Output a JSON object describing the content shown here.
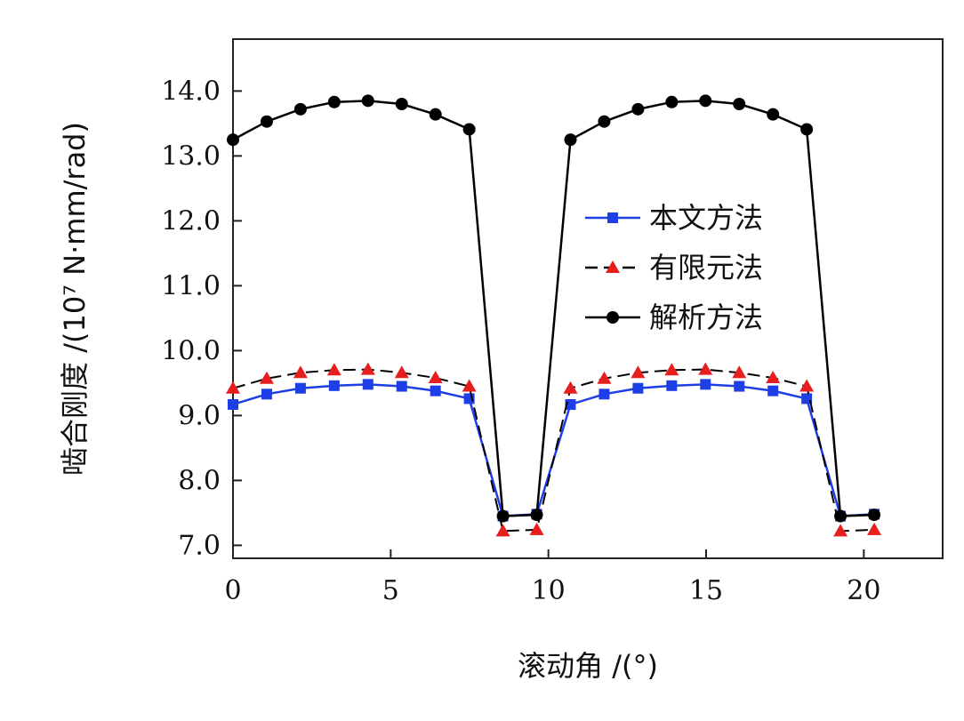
{
  "chart_data": {
    "type": "line",
    "xlabel": "滚动角 /(°)",
    "ylabel": "啮合刚度 /(10⁷ N·mm/rad)",
    "xlim": [
      0,
      22.5
    ],
    "ylim": [
      6.8,
      14.8
    ],
    "x_ticks": [
      0,
      5,
      10,
      15,
      20
    ],
    "x_tick_labels": [
      "0",
      "5",
      "10",
      "15",
      "20"
    ],
    "y_ticks": [
      7,
      8,
      9,
      10,
      11,
      12,
      13,
      14
    ],
    "y_tick_labels": [
      "7.0",
      "8.0",
      "9.0",
      "10.0",
      "11.0",
      "12.0",
      "13.0",
      "14.0"
    ],
    "grid": false,
    "legend_position": "middle-right",
    "x": [
      0,
      1.07,
      2.14,
      3.21,
      4.28,
      5.35,
      6.42,
      7.49,
      8.56,
      9.63,
      10.7,
      11.77,
      12.84,
      13.91,
      14.98,
      16.05,
      17.12,
      18.19,
      19.26,
      20.33
    ],
    "series": [
      {
        "name": "本文方法",
        "color": "#1f3fe6",
        "marker": "square",
        "line": "solid",
        "values": [
          9.17,
          9.33,
          9.42,
          9.46,
          9.48,
          9.45,
          9.38,
          9.26,
          7.45,
          7.48,
          9.17,
          9.33,
          9.42,
          9.46,
          9.48,
          9.45,
          9.38,
          9.26,
          7.45,
          7.48
        ]
      },
      {
        "name": "有限元法",
        "color": "#e61e1e",
        "marker": "triangle",
        "line": "dashed",
        "values": [
          9.42,
          9.57,
          9.66,
          9.7,
          9.71,
          9.66,
          9.58,
          9.45,
          7.22,
          7.24,
          9.42,
          9.57,
          9.66,
          9.7,
          9.71,
          9.66,
          9.58,
          9.45,
          7.22,
          7.24
        ]
      },
      {
        "name": "解析方法",
        "color": "#000000",
        "marker": "circle",
        "line": "solid",
        "values": [
          13.25,
          13.53,
          13.72,
          13.83,
          13.85,
          13.8,
          13.64,
          13.41,
          7.45,
          7.47,
          13.25,
          13.53,
          13.72,
          13.83,
          13.85,
          13.8,
          13.64,
          13.41,
          7.45,
          7.47
        ]
      }
    ]
  }
}
